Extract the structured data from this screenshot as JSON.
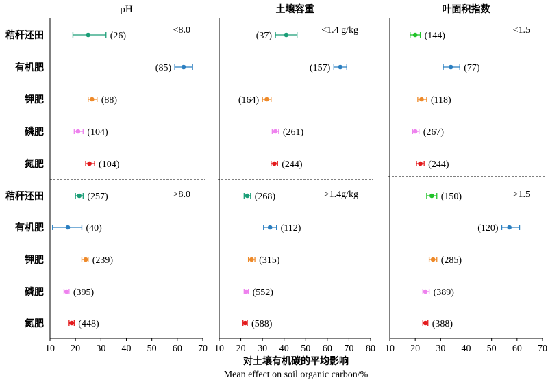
{
  "xlabel_cn": "对土壤有机碳的平均影响",
  "xlabel_en": "Mean effect on soil organic carbon/%",
  "categories": [
    "秸秆还田",
    "有机肥",
    "钾肥",
    "磷肥",
    "氮肥",
    "秸秆还田",
    "有机肥",
    "钾肥",
    "磷肥",
    "氮肥"
  ],
  "colors": {
    "秸秆还田": "#1a9e77",
    "有机肥": "#2b7fc1",
    "钾肥": "#ee8a2a",
    "磷肥": "#ee82ee",
    "氮肥": "#e31a1c",
    "green_alt": "#22c32a",
    "axis": "#000000"
  },
  "chart_data": [
    {
      "type": "scatter",
      "title": "pH",
      "ticks": [
        "10",
        "20",
        "30",
        "40",
        "50",
        "60",
        "70"
      ],
      "xlim": [
        10,
        70
      ],
      "groups": [
        {
          "label": "<8.0",
          "points": [
            {
              "category": "秸秆还田",
              "mean": 25,
              "lo": 19,
              "hi": 32,
              "n": "(26)",
              "label_side": "right"
            },
            {
              "category": "有机肥",
              "mean": 62.5,
              "lo": 59,
              "hi": 66,
              "n": "(85)",
              "label_side": "left"
            },
            {
              "category": "钾肥",
              "mean": 26.5,
              "lo": 25,
              "hi": 28.5,
              "n": "(88)",
              "label_side": "right"
            },
            {
              "category": "磷肥",
              "mean": 21,
              "lo": 19.5,
              "hi": 23,
              "n": "(104)",
              "label_side": "right"
            },
            {
              "category": "氮肥",
              "mean": 25.5,
              "lo": 24,
              "hi": 27.5,
              "n": "(104)",
              "label_side": "right"
            }
          ]
        },
        {
          "label": ">8.0",
          "points": [
            {
              "category": "秸秆还田",
              "mean": 21.5,
              "lo": 20,
              "hi": 23,
              "n": "(257)",
              "label_side": "right"
            },
            {
              "category": "有机肥",
              "mean": 17,
              "lo": 11,
              "hi": 22.5,
              "n": "(40)",
              "label_side": "right"
            },
            {
              "category": "钾肥",
              "mean": 24,
              "lo": 22.5,
              "hi": 25,
              "n": "(239)",
              "label_side": "right"
            },
            {
              "category": "磷肥",
              "mean": 16.5,
              "lo": 15.5,
              "hi": 17.5,
              "n": "(395)",
              "label_side": "right"
            },
            {
              "category": "氮肥",
              "mean": 18.5,
              "lo": 17.5,
              "hi": 19.5,
              "n": "(448)",
              "label_side": "right"
            }
          ]
        }
      ]
    },
    {
      "type": "scatter",
      "title": "土壤容重",
      "ticks": [
        "10",
        "20",
        "30",
        "40",
        "50",
        "60",
        "70",
        "80"
      ],
      "xlim": [
        10,
        80
      ],
      "groups": [
        {
          "label": "<1.4 g/kg",
          "points": [
            {
              "category": "秸秆还田",
              "mean": 41,
              "lo": 36,
              "hi": 46,
              "n": "(37)",
              "label_side": "left"
            },
            {
              "category": "有机肥",
              "mean": 66,
              "lo": 63,
              "hi": 69,
              "n": "(157)",
              "label_side": "left"
            },
            {
              "category": "钾肥",
              "mean": 32,
              "lo": 30,
              "hi": 34,
              "n": "(164)",
              "label_side": "left"
            },
            {
              "category": "磷肥",
              "mean": 36,
              "lo": 34.5,
              "hi": 37.5,
              "n": "(261)",
              "label_side": "right"
            },
            {
              "category": "氮肥",
              "mean": 35.5,
              "lo": 34,
              "hi": 37,
              "n": "(244)",
              "label_side": "right"
            }
          ]
        },
        {
          "label": ">1.4g/kg",
          "points": [
            {
              "category": "秸秆还田",
              "mean": 23,
              "lo": 21.5,
              "hi": 24.5,
              "n": "(268)",
              "label_side": "right"
            },
            {
              "category": "有机肥",
              "mean": 33.5,
              "lo": 30.5,
              "hi": 36.5,
              "n": "(112)",
              "label_side": "right"
            },
            {
              "category": "钾肥",
              "mean": 25,
              "lo": 23.5,
              "hi": 26.5,
              "n": "(315)",
              "label_side": "right"
            },
            {
              "category": "磷肥",
              "mean": 22.5,
              "lo": 21.5,
              "hi": 23.5,
              "n": "(552)",
              "label_side": "right"
            },
            {
              "category": "氮肥",
              "mean": 22,
              "lo": 21,
              "hi": 23,
              "n": "(588)",
              "label_side": "right"
            }
          ]
        }
      ]
    },
    {
      "type": "scatter",
      "title": "叶面积指数",
      "ticks": [
        "10",
        "20",
        "30",
        "40",
        "50",
        "60",
        "70"
      ],
      "xlim": [
        10,
        70
      ],
      "groups": [
        {
          "label": "<1.5",
          "points": [
            {
              "category": "秸秆还田",
              "mean": 20,
              "lo": 18,
              "hi": 22,
              "n": "(144)",
              "label_side": "right",
              "color": "#22c32a"
            },
            {
              "category": "有机肥",
              "mean": 34,
              "lo": 31,
              "hi": 37.5,
              "n": "(77)",
              "label_side": "right"
            },
            {
              "category": "钾肥",
              "mean": 22.5,
              "lo": 21,
              "hi": 24.5,
              "n": "(118)",
              "label_side": "right"
            },
            {
              "category": "磷肥",
              "mean": 20,
              "lo": 19,
              "hi": 21.5,
              "n": "(267)",
              "label_side": "right"
            },
            {
              "category": "氮肥",
              "mean": 22,
              "lo": 20.5,
              "hi": 23.5,
              "n": "(244)",
              "label_side": "right"
            }
          ]
        },
        {
          "label": ">1.5",
          "points": [
            {
              "category": "秸秆还田",
              "mean": 26.5,
              "lo": 24.5,
              "hi": 28.5,
              "n": "(150)",
              "label_side": "right",
              "color": "#22c32a"
            },
            {
              "category": "有机肥",
              "mean": 57,
              "lo": 54,
              "hi": 61,
              "n": "(120)",
              "label_side": "left"
            },
            {
              "category": "钾肥",
              "mean": 27,
              "lo": 25.5,
              "hi": 28.5,
              "n": "(285)",
              "label_side": "right"
            },
            {
              "category": "磷肥",
              "mean": 24,
              "lo": 23,
              "hi": 25.5,
              "n": "(389)",
              "label_side": "right"
            },
            {
              "category": "氮肥",
              "mean": 24,
              "lo": 23,
              "hi": 25,
              "n": "(388)",
              "label_side": "right"
            }
          ]
        }
      ]
    }
  ]
}
